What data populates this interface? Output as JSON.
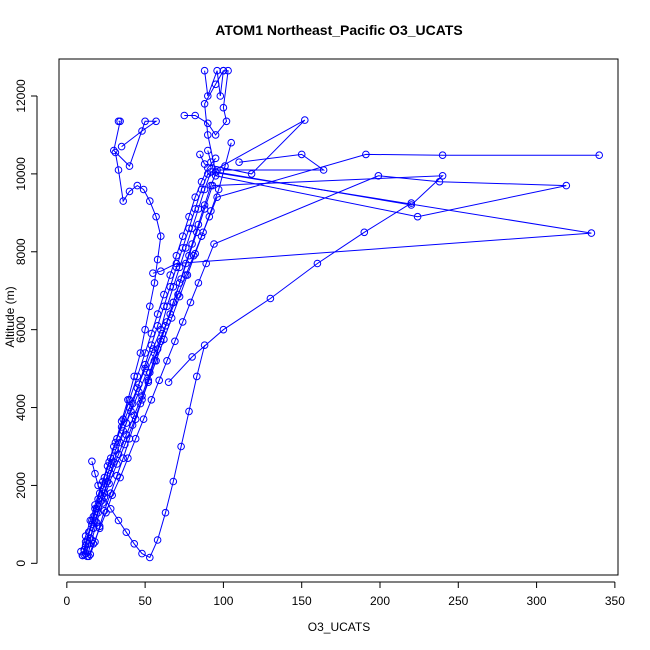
{
  "chart_data": {
    "type": "line",
    "title": "ATOM1 Northeast_Pacific O3_UCATS",
    "xlabel": "O3_UCATS",
    "ylabel": "Altitude (m)",
    "xlim": [
      -5,
      352
    ],
    "ylim": [
      -300,
      12950
    ],
    "xticks": [
      0,
      50,
      100,
      150,
      200,
      250,
      300,
      350
    ],
    "yticks": [
      0,
      2000,
      4000,
      6000,
      8000,
      10000,
      12000
    ],
    "grid": false,
    "legend": "none",
    "colors": {
      "series": "#0000ff"
    },
    "series": [
      {
        "x": [
          10,
          11,
          12,
          14,
          16,
          18,
          21,
          24,
          28,
          32,
          36,
          40,
          45,
          50,
          54,
          58,
          62,
          66,
          70,
          74,
          78,
          82,
          86,
          90,
          95
        ],
        "y": [
          200,
          350,
          550,
          800,
          1100,
          1400,
          1800,
          2200,
          2700,
          3200,
          3700,
          4200,
          4800,
          5400,
          5900,
          6400,
          6900,
          7400,
          7900,
          8400,
          8900,
          9400,
          9800,
          10150,
          10400
        ]
      },
      {
        "x": [
          12,
          14,
          17,
          20,
          24,
          28,
          33,
          38,
          43,
          48,
          53,
          58,
          63,
          68,
          73,
          78,
          83,
          88,
          93,
          240,
          220,
          95,
          90,
          88,
          95,
          100
        ],
        "y": [
          250,
          500,
          900,
          1300,
          1800,
          2300,
          2800,
          3300,
          3800,
          4300,
          4900,
          5500,
          6100,
          6700,
          7300,
          7900,
          8500,
          9100,
          9700,
          9950,
          9200,
          10050,
          11000,
          11800,
          12300,
          12650
        ]
      },
      {
        "x": [
          9,
          12,
          15,
          18,
          22,
          26,
          30,
          35,
          40,
          45,
          50,
          55,
          60,
          64,
          68,
          72,
          76,
          80,
          84,
          88,
          92,
          335,
          70,
          60,
          55
        ],
        "y": [
          300,
          700,
          1100,
          1500,
          2000,
          2500,
          3000,
          3500,
          4000,
          4500,
          5000,
          5500,
          6000,
          6600,
          7100,
          7600,
          8100,
          8600,
          9100,
          9600,
          10050,
          8480,
          7700,
          7500,
          7450
        ]
      },
      {
        "x": [
          11,
          13,
          16,
          19,
          23,
          27,
          31,
          36,
          41,
          46,
          51,
          56,
          61,
          66,
          71,
          76,
          81,
          86,
          91,
          96,
          191,
          240,
          340
        ],
        "y": [
          220,
          600,
          1000,
          1400,
          1900,
          2400,
          2900,
          3400,
          3900,
          4400,
          4900,
          5400,
          5900,
          6400,
          6900,
          7400,
          7900,
          8400,
          8900,
          9400,
          10500,
          10480,
          10480
        ]
      },
      {
        "x": [
          13,
          16,
          19,
          23,
          27,
          32,
          37,
          42,
          47,
          52,
          57,
          62,
          67,
          72,
          77,
          82,
          87,
          92,
          97,
          101,
          105
        ],
        "y": [
          180,
          600,
          1050,
          1550,
          2050,
          2550,
          3050,
          3550,
          4100,
          4650,
          5200,
          5750,
          6300,
          6850,
          7400,
          7950,
          8500,
          9050,
          9600,
          10200,
          10800
        ]
      },
      {
        "x": [
          10,
          12,
          14,
          17,
          20,
          23,
          27,
          31,
          35,
          39,
          43,
          47,
          50,
          53,
          56,
          58,
          60,
          57,
          53,
          49,
          45,
          40,
          36,
          33,
          31
        ],
        "y": [
          200,
          450,
          800,
          1200,
          1650,
          2100,
          2600,
          3100,
          3650,
          4200,
          4800,
          5400,
          6000,
          6600,
          7200,
          7800,
          8400,
          8900,
          9300,
          9600,
          9700,
          9550,
          9300,
          10100,
          10550
        ]
      },
      {
        "x": [
          12,
          15,
          18,
          22,
          26,
          30,
          34,
          38,
          42,
          46,
          50,
          54,
          58,
          62,
          66,
          70,
          74,
          78,
          82,
          86,
          90,
          152,
          118,
          88,
          85
        ],
        "y": [
          250,
          650,
          1100,
          1600,
          2100,
          2600,
          3100,
          3600,
          4100,
          4600,
          5100,
          5600,
          6100,
          6600,
          7100,
          7600,
          8100,
          8600,
          9100,
          9600,
          10000,
          11380,
          10000,
          10250,
          10500
        ]
      },
      {
        "x": [
          14,
          17,
          21,
          25,
          29,
          34,
          39,
          44,
          49,
          54,
          59,
          64,
          69,
          74,
          79,
          84,
          89,
          94,
          199,
          238,
          319,
          224,
          95,
          92,
          90
        ],
        "y": [
          180,
          500,
          900,
          1300,
          1750,
          2200,
          2700,
          3200,
          3700,
          4200,
          4700,
          5200,
          5700,
          6200,
          6700,
          7200,
          7700,
          8200,
          9950,
          9800,
          9700,
          8900,
          9950,
          10300,
          10600
        ]
      },
      {
        "x": [
          15,
          18,
          21,
          24,
          28,
          32,
          36,
          40,
          44,
          48,
          52,
          56,
          60,
          64,
          68,
          72,
          76,
          80,
          84,
          88,
          92,
          96,
          164,
          150,
          110
        ],
        "y": [
          230,
          550,
          950,
          1350,
          1800,
          2250,
          2700,
          3200,
          3700,
          4200,
          4700,
          5200,
          5700,
          6200,
          6700,
          7200,
          7700,
          8200,
          8700,
          9200,
          9700,
          10100,
          10100,
          10500,
          10300
        ]
      },
      {
        "x": [
          16,
          18,
          20,
          24,
          28,
          33,
          38,
          43,
          48,
          53,
          58,
          63,
          68,
          73,
          78,
          83,
          88
        ],
        "y": [
          2620,
          2300,
          2000,
          1700,
          1400,
          1100,
          800,
          500,
          250,
          150,
          600,
          1300,
          2100,
          3000,
          3900,
          4800,
          5600
        ]
      },
      {
        "x": [
          65,
          80,
          100,
          130,
          160,
          190,
          220
        ],
        "y": [
          4650,
          5300,
          6000,
          6800,
          7700,
          8500,
          9250
        ]
      },
      {
        "x": [
          33,
          34,
          30,
          40,
          50,
          57,
          48,
          35
        ],
        "y": [
          11350,
          11350,
          10600,
          10200,
          11350,
          11350,
          11100,
          10700
        ]
      },
      {
        "x": [
          88,
          90,
          96,
          98,
          100,
          103,
          100,
          102,
          95,
          90,
          82,
          75
        ],
        "y": [
          12650,
          12000,
          12650,
          12000,
          12650,
          12650,
          11700,
          11350,
          11000,
          11300,
          11500,
          11500
        ]
      }
    ]
  }
}
